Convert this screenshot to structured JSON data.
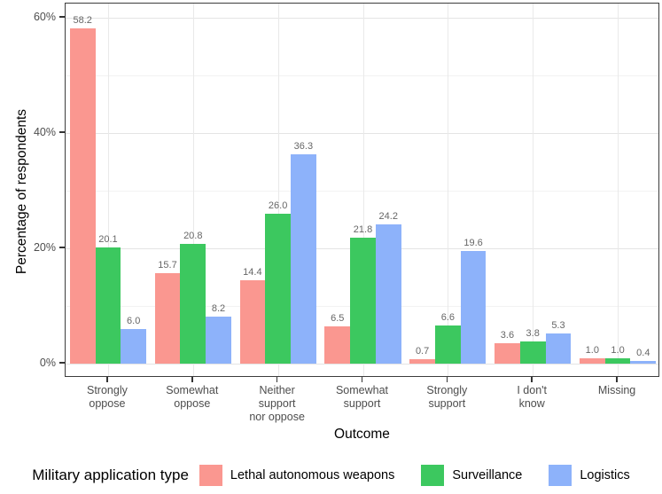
{
  "chart_data": {
    "type": "bar",
    "title": "",
    "xlabel": "Outcome",
    "ylabel": "Percentage of respondents",
    "categories": [
      "Strongly\noppose",
      "Somewhat\noppose",
      "Neither\nsupport\nnor oppose",
      "Somewhat\nsupport",
      "Strongly\nsupport",
      "I don't\nknow",
      "Missing"
    ],
    "series": [
      {
        "name": "Lethal autonomous weapons",
        "color": "#FA9790",
        "values": [
          58.2,
          15.7,
          14.4,
          6.5,
          0.7,
          3.6,
          1.0
        ]
      },
      {
        "name": "Surveillance",
        "color": "#3CC85F",
        "values": [
          20.1,
          20.8,
          26.0,
          21.8,
          6.6,
          3.8,
          1.0
        ]
      },
      {
        "name": "Logistics",
        "color": "#8DB2FA",
        "values": [
          6.0,
          8.2,
          36.3,
          24.2,
          19.6,
          5.3,
          0.4
        ]
      }
    ],
    "value_labels_decimals": 1,
    "ylim": [
      0,
      62
    ],
    "y_major_ticks": [
      0,
      20,
      40,
      60
    ],
    "y_minor_ticks": [
      10,
      30,
      50
    ],
    "y_tick_labels": [
      "0%",
      "20%",
      "40%",
      "60%"
    ],
    "grid": "on",
    "legend_position": "bottom",
    "legend_title": "Military application type",
    "colors": {
      "panel_border": "#3c3c3c",
      "grid_major": "#e4e4e4",
      "grid_minor": "#f2f2f2",
      "tick_label": "#4d4d4d",
      "value_label": "#666666",
      "background": "#ffffff"
    }
  }
}
